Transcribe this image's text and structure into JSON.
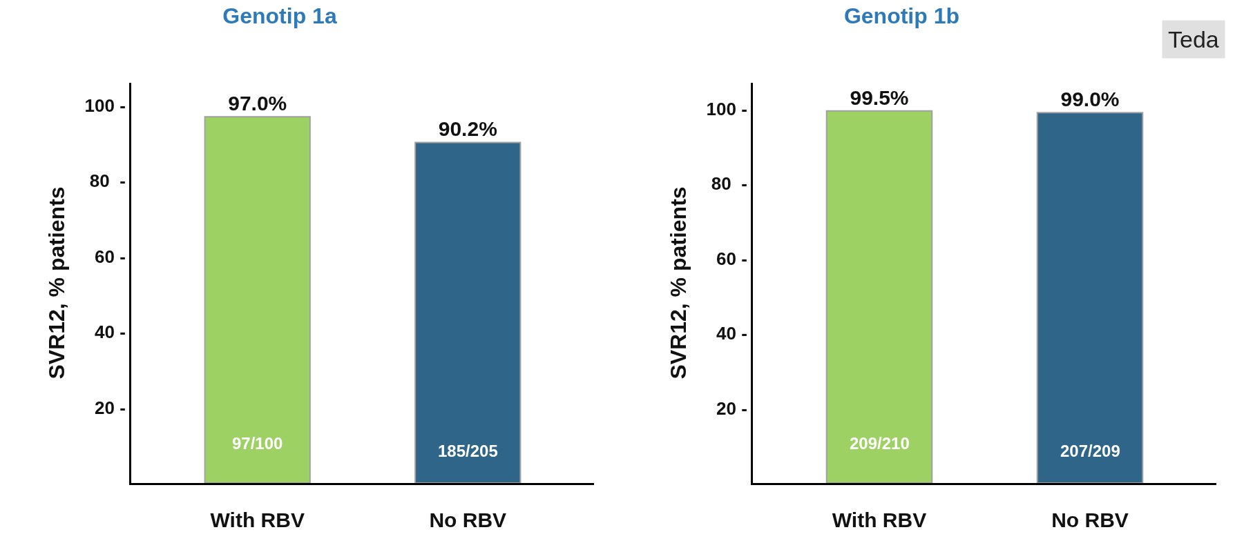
{
  "chart_data": [
    {
      "type": "bar",
      "title": "Genotip 1a",
      "ylabel": "SVR12, % patients",
      "categories": [
        "With RBV",
        "No RBV"
      ],
      "values": [
        97.0,
        90.2
      ],
      "colors": [
        "#9dd163",
        "#2e6589"
      ],
      "value_labels": [
        "97.0%",
        "90.2%"
      ],
      "ylim": [
        0,
        106
      ],
      "yticks": [
        {
          "value": 20,
          "label": "20 -"
        },
        {
          "value": 40,
          "label": "40 -"
        },
        {
          "value": 60,
          "label": "60 -"
        },
        {
          "value": 80,
          "label": "80  -"
        },
        {
          "value": 100,
          "label": "100 -"
        }
      ],
      "grid": false,
      "legend": false,
      "annotations": [
        "97/100",
        "185/205"
      ]
    },
    {
      "type": "bar",
      "title": "Genotip 1b",
      "ylabel": "SVR12, % patients",
      "categories": [
        "With RBV",
        "No RBV"
      ],
      "values": [
        99.5,
        99.0
      ],
      "colors": [
        "#9dd163",
        "#2e6589"
      ],
      "value_labels": [
        "99.5%",
        "99.0%"
      ],
      "ylim": [
        0,
        107
      ],
      "yticks": [
        {
          "value": 20,
          "label": "20 -"
        },
        {
          "value": 40,
          "label": "40 -"
        },
        {
          "value": 60,
          "label": "60 -"
        },
        {
          "value": 80,
          "label": "80  -"
        },
        {
          "value": 100,
          "label": "100 -"
        }
      ],
      "grid": false,
      "legend": false,
      "annotations": [
        "209/210",
        "207/209",
        "Teda"
      ]
    }
  ]
}
